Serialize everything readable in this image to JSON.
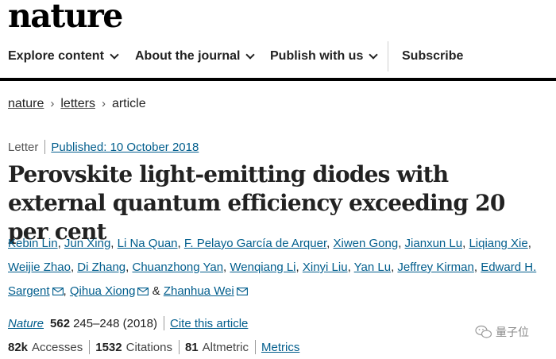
{
  "brand": {
    "logo_text": "nature"
  },
  "nav": {
    "explore": "Explore content",
    "about": "About the journal",
    "publish": "Publish with us",
    "subscribe": "Subscribe"
  },
  "breadcrumb": {
    "items": [
      "nature",
      "letters",
      "article"
    ]
  },
  "article": {
    "type": "Letter",
    "published": "Published: 10 October 2018",
    "title": "Perovskite light-emitting diodes with external quantum efficiency exceeding 20 per cent",
    "authors": [
      "Kebin Lin",
      "Jun Xing",
      "Li Na Quan",
      "F. Pelayo García de Arquer",
      "Xiwen Gong",
      "Jianxun Lu",
      "Liqiang Xie",
      "Weijie Zhao",
      "Di Zhang",
      "Chuanzhong Yan",
      "Wenqiang Li",
      "Xinyi Liu",
      "Yan Lu",
      "Jeffrey Kirman",
      "Edward H. Sargent",
      "Qihua Xiong",
      "Zhanhua Wei"
    ],
    "author_separator": ",",
    "author_ampersand": "&",
    "journal": "Nature",
    "volume": "562",
    "pages": "245–248 (2018)",
    "cite": "Cite this article"
  },
  "metrics": {
    "accesses_value": "82k",
    "accesses_label": "Accesses",
    "citations_value": "1532",
    "citations_label": "Citations",
    "altmetric_value": "81",
    "altmetric_label": "Altmetric",
    "metrics_link": "Metrics"
  },
  "watermark": {
    "text": "量子位"
  },
  "colors": {
    "link": "#025e8d",
    "text": "#222222",
    "rule": "#000000"
  }
}
